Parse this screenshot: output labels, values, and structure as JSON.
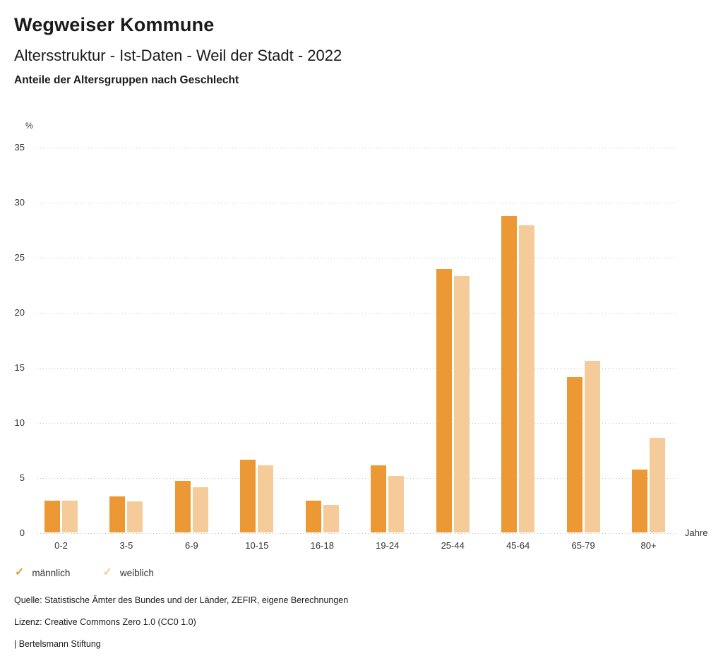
{
  "header": {
    "title": "Wegweiser Kommune",
    "subtitle": "Altersstruktur - Ist-Daten - Weil der Stadt - 2022",
    "chart_title": "Anteile der Altersgruppen nach Geschlecht"
  },
  "chart_data": {
    "type": "bar",
    "title": "Anteile der Altersgruppen nach Geschlecht",
    "categories": [
      "0-2",
      "3-5",
      "6-9",
      "10-15",
      "16-18",
      "19-24",
      "25-44",
      "45-64",
      "65-79",
      "80+"
    ],
    "series": [
      {
        "key": "maennlich",
        "name": "männlich",
        "color": "#EC9935",
        "values": [
          2.9,
          3.3,
          4.7,
          6.6,
          2.9,
          6.1,
          23.9,
          28.7,
          14.1,
          5.7
        ]
      },
      {
        "key": "weiblich",
        "name": "weiblich",
        "color": "#F5CC99",
        "values": [
          2.9,
          2.8,
          4.1,
          6.1,
          2.5,
          5.1,
          23.3,
          27.9,
          15.6,
          8.6
        ]
      }
    ],
    "ylabel_unit": "%",
    "xlabel_unit": "Jahre",
    "ylim": [
      0,
      35
    ],
    "yticks": [
      0,
      5,
      10,
      15,
      20,
      25,
      30,
      35
    ],
    "grid": "horizontal-dotted",
    "legend_position": "bottom-left"
  },
  "legend": {
    "check_glyph": "✓",
    "items": [
      {
        "key": "maennlich",
        "label": "männlich",
        "color": "#EC9935"
      },
      {
        "key": "weiblich",
        "label": "weiblich",
        "color": "#F5CC99"
      }
    ]
  },
  "footer": {
    "source": "Quelle: Statistische Ämter des Bundes und der Länder, ZEFIR, eigene Berechnungen",
    "license": "Lizenz: Creative Commons Zero 1.0 (CC0 1.0)",
    "attribution": "| Bertelsmann Stiftung"
  }
}
